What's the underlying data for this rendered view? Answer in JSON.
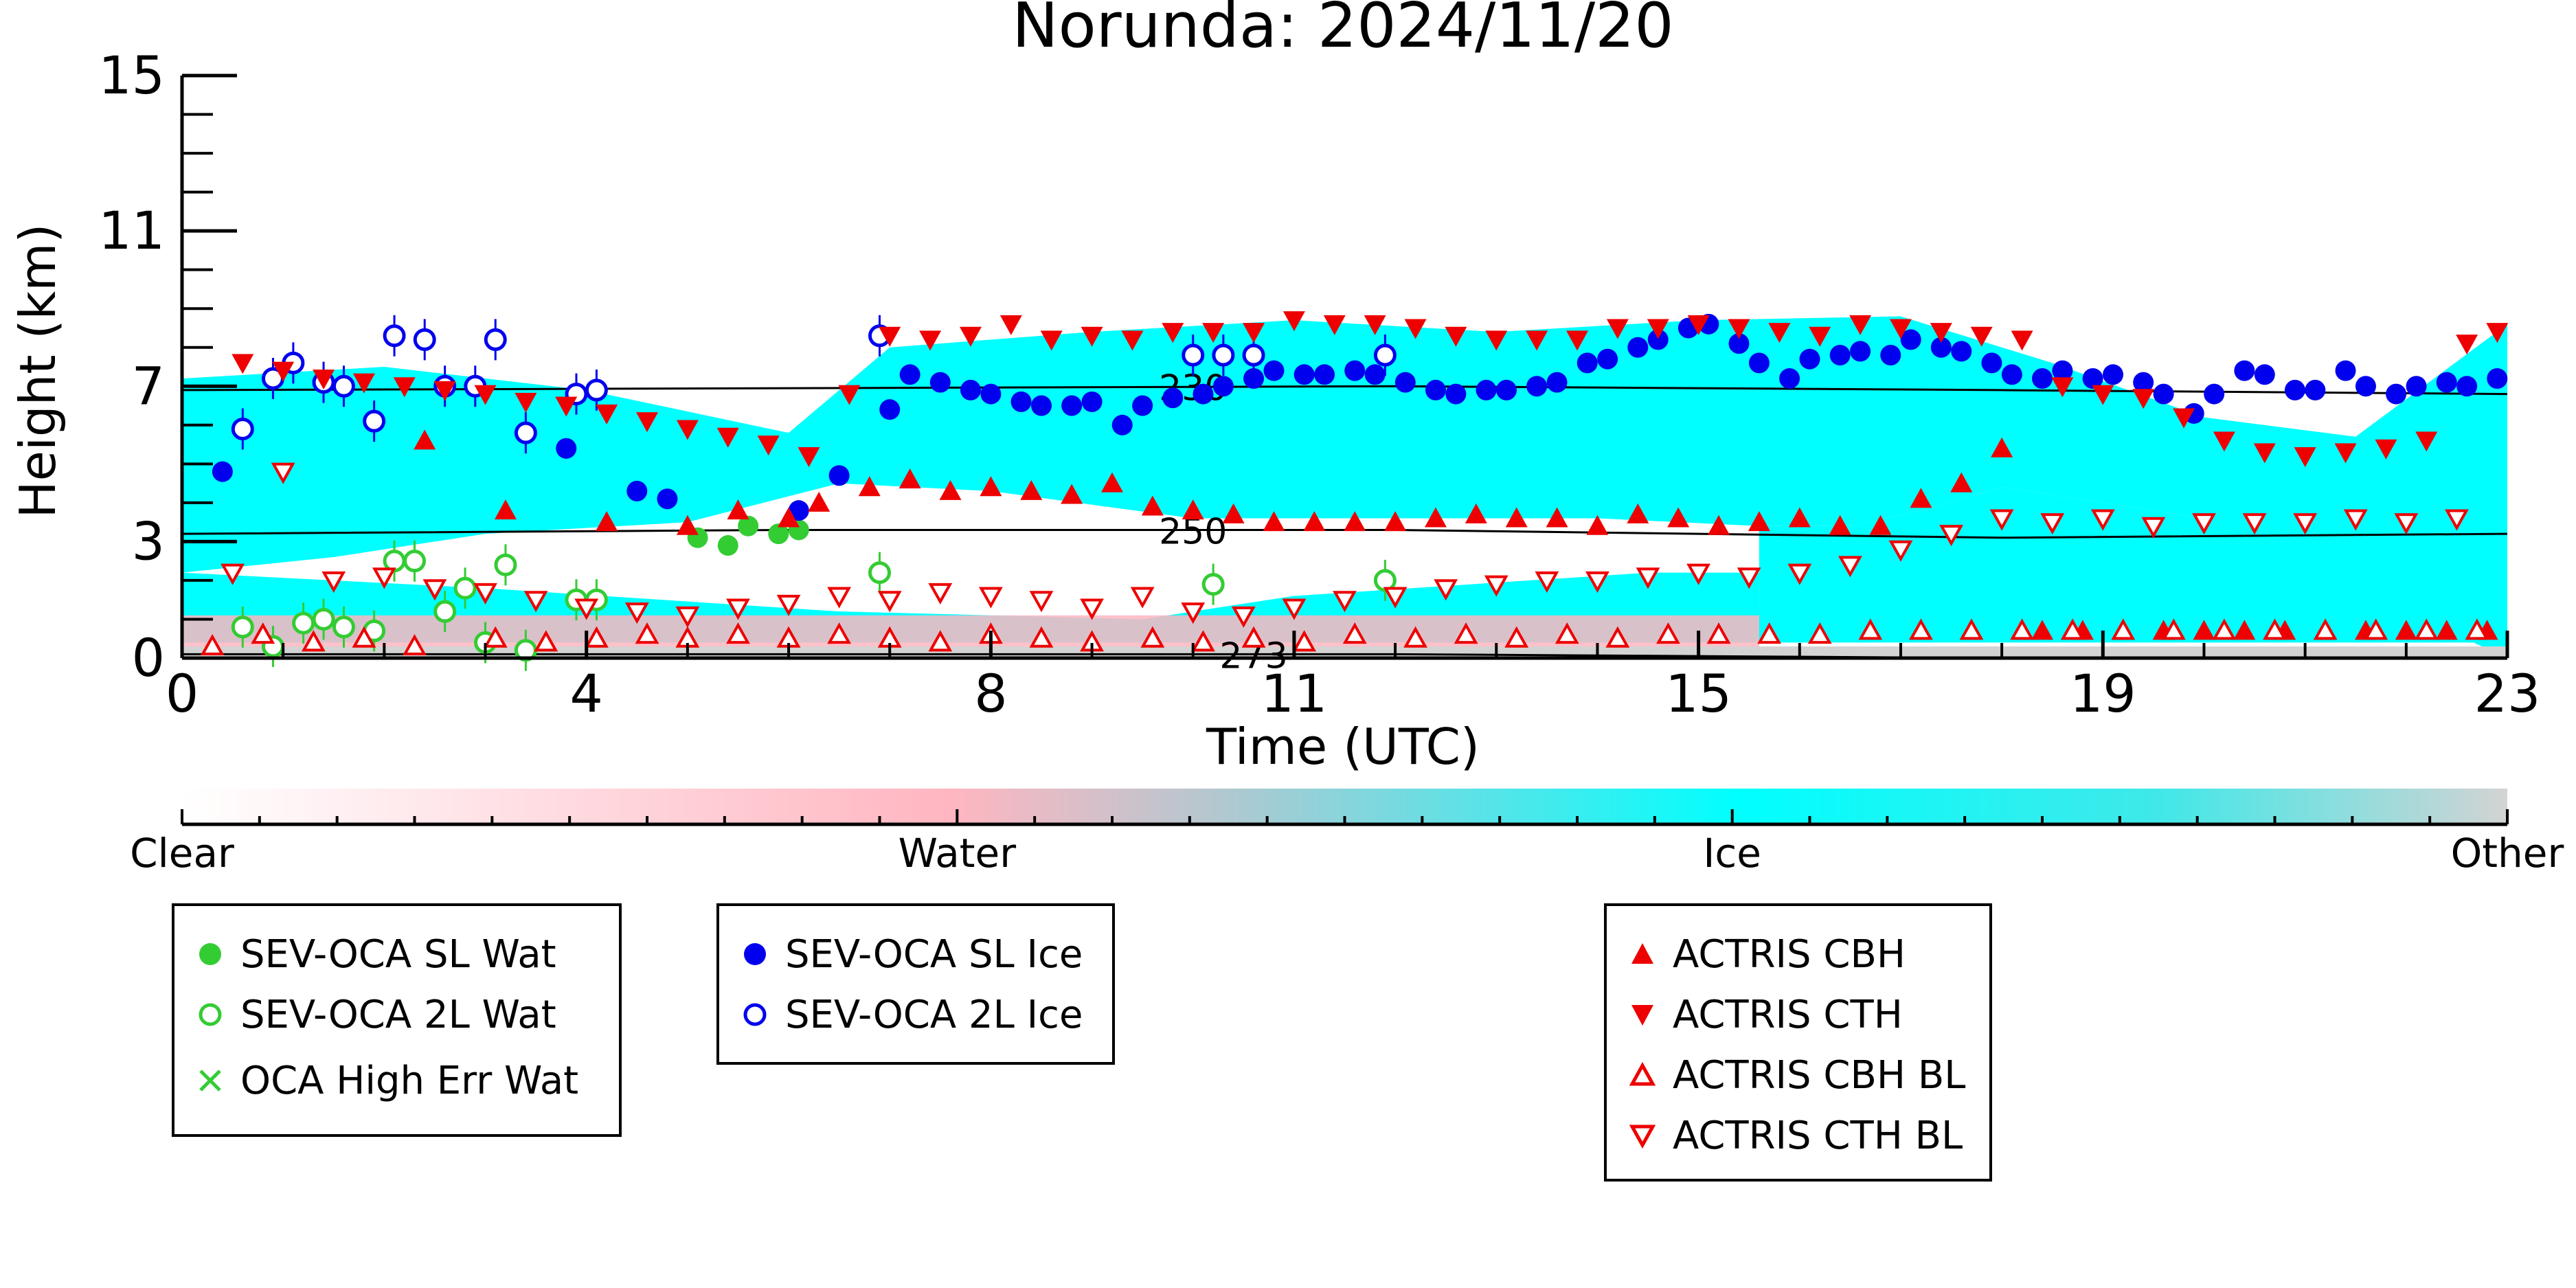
{
  "chart_data": {
    "type": "scatter",
    "title": "Norunda: 2024/11/20",
    "xlabel": "Time (UTC)",
    "ylabel": "Height (km)",
    "xlim": [
      0,
      23
    ],
    "ylim": [
      0,
      15
    ],
    "xticks": [
      "0",
      "4",
      "8",
      "11",
      "15",
      "19",
      "23"
    ],
    "xtick_values": [
      0,
      4,
      8,
      11,
      15,
      19,
      23
    ],
    "yticks": [
      "0",
      "3",
      "7",
      "11",
      "15"
    ],
    "ytick_values": [
      0,
      3,
      7,
      11,
      15
    ],
    "grid": false,
    "colorbar": {
      "labels": [
        "Clear",
        "Water",
        "Ice",
        "Other"
      ],
      "colors": [
        "#ffffff",
        "#ffb6c1",
        "#00ffff",
        "#d3d3d3"
      ]
    },
    "isotherms": [
      {
        "label": "230",
        "x": [
          0,
          6,
          12,
          18,
          23
        ],
        "y": [
          6.9,
          6.95,
          7.0,
          6.9,
          6.8
        ]
      },
      {
        "label": "250",
        "x": [
          0,
          6,
          12,
          18,
          23
        ],
        "y": [
          3.2,
          3.3,
          3.3,
          3.1,
          3.2
        ]
      },
      {
        "label": "273",
        "x": [
          0,
          6,
          12,
          18,
          23
        ],
        "y": [
          0.1,
          0.1,
          0.1,
          0.0,
          0.0
        ]
      }
    ],
    "series": [
      {
        "name": "SEV-OCA SL Wat",
        "color": "#33cc33",
        "marker": "filled-circle",
        "x": [
          5.1,
          5.4,
          5.6,
          5.9,
          6.1
        ],
        "y": [
          3.1,
          2.9,
          3.4,
          3.2,
          3.3
        ]
      },
      {
        "name": "SEV-OCA 2L Wat",
        "color": "#33cc33",
        "marker": "open-circle",
        "x": [
          0.6,
          0.9,
          1.2,
          1.4,
          1.6,
          1.9,
          2.1,
          2.3,
          2.6,
          2.8,
          3.0,
          3.2,
          3.4,
          3.9,
          4.1,
          6.9,
          10.2,
          11.9
        ],
        "y": [
          0.8,
          0.3,
          0.9,
          1.0,
          0.8,
          0.7,
          2.5,
          2.5,
          1.2,
          1.8,
          0.4,
          2.4,
          0.2,
          1.5,
          1.5,
          2.2,
          1.9,
          2.0
        ]
      },
      {
        "name": "OCA High Err Wat",
        "color": "#33cc33",
        "marker": "x",
        "x": [],
        "y": []
      },
      {
        "name": "SEV-OCA SL Ice",
        "color": "#0000ee",
        "marker": "filled-circle",
        "x": [
          0.4,
          3.8,
          4.5,
          4.8,
          6.1,
          6.5,
          7.0,
          7.2,
          7.5,
          7.8,
          8.0,
          8.3,
          8.5,
          8.8,
          9.0,
          9.3,
          9.5,
          9.8,
          10.1,
          10.3,
          10.6,
          10.8,
          11.1,
          11.3,
          11.6,
          11.8,
          12.1,
          12.4,
          12.6,
          12.9,
          13.1,
          13.4,
          13.6,
          13.9,
          14.1,
          14.4,
          14.6,
          14.9,
          15.1,
          15.4,
          15.6,
          15.9,
          16.1,
          16.4,
          16.6,
          16.9,
          17.1,
          17.4,
          17.6,
          17.9,
          18.1,
          18.4,
          18.6,
          18.9,
          19.1,
          19.4,
          19.6,
          19.9,
          20.1,
          20.4,
          20.6,
          20.9,
          21.1,
          21.4,
          21.6,
          21.9,
          22.1,
          22.4,
          22.6,
          22.9
        ],
        "y": [
          4.8,
          5.4,
          4.3,
          4.1,
          3.8,
          4.7,
          6.4,
          7.3,
          7.1,
          6.9,
          6.8,
          6.6,
          6.5,
          6.5,
          6.6,
          6.0,
          6.5,
          6.7,
          6.8,
          7.0,
          7.2,
          7.4,
          7.3,
          7.3,
          7.4,
          7.3,
          7.1,
          6.9,
          6.8,
          6.9,
          6.9,
          7.0,
          7.1,
          7.6,
          7.7,
          8.0,
          8.2,
          8.5,
          8.6,
          8.1,
          7.6,
          7.2,
          7.7,
          7.8,
          7.9,
          7.8,
          8.2,
          8.0,
          7.9,
          7.6,
          7.3,
          7.2,
          7.4,
          7.2,
          7.3,
          7.1,
          6.8,
          6.3,
          6.8,
          7.4,
          7.3,
          6.9,
          6.9,
          7.4,
          7.0,
          6.8,
          7.0,
          7.1,
          7.0,
          7.2
        ]
      },
      {
        "name": "SEV-OCA 2L Ice",
        "color": "#0000ee",
        "marker": "open-circle",
        "x": [
          0.6,
          0.9,
          1.1,
          1.4,
          1.6,
          1.9,
          2.1,
          2.4,
          2.6,
          2.9,
          3.1,
          3.4,
          3.9,
          4.1,
          6.9,
          10.0,
          10.3,
          10.6,
          11.9
        ],
        "y": [
          5.9,
          7.2,
          7.6,
          7.1,
          7.0,
          6.1,
          8.3,
          8.2,
          7.0,
          7.0,
          8.2,
          5.8,
          6.8,
          6.9,
          8.3,
          7.8,
          7.8,
          7.8,
          7.8
        ]
      },
      {
        "name": "ACTRIS CBH",
        "color": "#ee0000",
        "marker": "filled-triangle-up",
        "x": [
          2.4,
          3.2,
          4.2,
          5.0,
          5.5,
          6.0,
          6.3,
          6.8,
          7.2,
          7.6,
          8.0,
          8.4,
          8.8,
          9.2,
          9.6,
          10.0,
          10.4,
          10.8,
          11.2,
          11.6,
          12.0,
          12.4,
          12.8,
          13.2,
          13.6,
          14.0,
          14.4,
          14.8,
          15.2,
          15.6,
          16.0,
          16.4,
          16.8,
          17.2,
          17.6,
          18.0,
          18.4,
          18.8,
          19.2,
          19.6,
          20.0,
          20.4,
          20.8,
          21.2,
          21.6,
          22.0,
          22.4,
          22.8
        ],
        "y": [
          5.6,
          3.8,
          3.5,
          3.4,
          3.8,
          3.6,
          4.0,
          4.4,
          4.6,
          4.3,
          4.4,
          4.3,
          4.2,
          4.5,
          3.9,
          3.8,
          3.7,
          3.5,
          3.5,
          3.5,
          3.5,
          3.6,
          3.7,
          3.6,
          3.6,
          3.4,
          3.7,
          3.6,
          3.4,
          3.5,
          3.6,
          3.4,
          3.4,
          4.1,
          4.5,
          5.4,
          0.7,
          0.7,
          0.7,
          0.7,
          0.7,
          0.7,
          0.7,
          0.7,
          0.7,
          0.7,
          0.7,
          0.7
        ]
      },
      {
        "name": "ACTRIS CTH",
        "color": "#ee0000",
        "marker": "filled-triangle-down",
        "x": [
          0.6,
          1.0,
          1.4,
          1.8,
          2.2,
          2.6,
          3.0,
          3.4,
          3.8,
          4.2,
          4.6,
          5.0,
          5.4,
          5.8,
          6.2,
          6.6,
          7.0,
          7.4,
          7.8,
          8.2,
          8.6,
          9.0,
          9.4,
          9.8,
          10.2,
          10.6,
          11.0,
          11.4,
          11.8,
          12.2,
          12.6,
          13.0,
          13.4,
          13.8,
          14.2,
          14.6,
          15.0,
          15.4,
          15.8,
          16.2,
          16.6,
          17.0,
          17.4,
          17.8,
          18.2,
          18.6,
          19.0,
          19.4,
          19.8,
          20.2,
          20.6,
          21.0,
          21.4,
          21.8,
          22.2,
          22.6,
          22.9
        ],
        "y": [
          7.6,
          7.4,
          7.2,
          7.1,
          7.0,
          6.9,
          6.8,
          6.6,
          6.5,
          6.3,
          6.1,
          5.9,
          5.7,
          5.5,
          5.2,
          6.8,
          8.3,
          8.2,
          8.3,
          8.6,
          8.2,
          8.3,
          8.2,
          8.4,
          8.4,
          8.4,
          8.7,
          8.6,
          8.6,
          8.5,
          8.3,
          8.2,
          8.2,
          8.2,
          8.5,
          8.5,
          8.6,
          8.5,
          8.4,
          8.3,
          8.6,
          8.5,
          8.4,
          8.3,
          8.2,
          7.0,
          6.8,
          6.7,
          6.2,
          5.6,
          5.3,
          5.2,
          5.3,
          5.4,
          5.6,
          8.1,
          8.4
        ]
      },
      {
        "name": "ACTRIS CBH BL",
        "color": "#ee0000",
        "marker": "open-triangle-up",
        "x": [
          0.3,
          0.8,
          1.3,
          1.8,
          2.3,
          3.1,
          3.6,
          4.1,
          4.6,
          5.0,
          5.5,
          6.0,
          6.5,
          7.0,
          7.5,
          8.0,
          8.5,
          9.0,
          9.6,
          10.1,
          10.6,
          11.1,
          11.6,
          12.2,
          12.7,
          13.2,
          13.7,
          14.2,
          14.7,
          15.2,
          15.7,
          16.2,
          16.7,
          17.2,
          17.7,
          18.2,
          18.7,
          19.2,
          19.7,
          20.2,
          20.7,
          21.2,
          21.7,
          22.2,
          22.7
        ],
        "y": [
          0.3,
          0.6,
          0.4,
          0.5,
          0.3,
          0.5,
          0.4,
          0.5,
          0.6,
          0.5,
          0.6,
          0.5,
          0.6,
          0.5,
          0.4,
          0.6,
          0.5,
          0.4,
          0.5,
          0.4,
          0.5,
          0.4,
          0.6,
          0.5,
          0.6,
          0.5,
          0.6,
          0.5,
          0.6,
          0.6,
          0.6,
          0.6,
          0.7,
          0.7,
          0.7,
          0.7,
          0.7,
          0.7,
          0.7,
          0.7,
          0.7,
          0.7,
          0.7,
          0.7,
          0.7
        ]
      },
      {
        "name": "ACTRIS CTH BL",
        "color": "#ee0000",
        "marker": "open-triangle-down",
        "x": [
          0.5,
          1.0,
          1.5,
          2.0,
          2.5,
          3.0,
          3.5,
          4.0,
          4.5,
          5.0,
          5.5,
          6.0,
          6.5,
          7.0,
          7.5,
          8.0,
          8.5,
          9.0,
          9.5,
          10.0,
          10.5,
          11.0,
          11.5,
          12.0,
          12.5,
          13.0,
          13.5,
          14.0,
          14.5,
          15.0,
          15.5,
          16.0,
          16.5,
          17.0,
          17.5,
          18.0,
          18.5,
          19.0,
          19.5,
          20.0,
          20.5,
          21.0,
          21.5,
          22.0,
          22.5
        ],
        "y": [
          2.2,
          4.8,
          2.0,
          2.1,
          1.8,
          1.7,
          1.5,
          1.3,
          1.2,
          1.1,
          1.3,
          1.4,
          1.6,
          1.5,
          1.7,
          1.6,
          1.5,
          1.3,
          1.6,
          1.2,
          1.1,
          1.3,
          1.5,
          1.6,
          1.8,
          1.9,
          2.0,
          2.0,
          2.1,
          2.2,
          2.1,
          2.2,
          2.4,
          2.8,
          3.2,
          3.6,
          3.5,
          3.6,
          3.4,
          3.5,
          3.5,
          3.5,
          3.6,
          3.5,
          3.6
        ]
      }
    ]
  }
}
